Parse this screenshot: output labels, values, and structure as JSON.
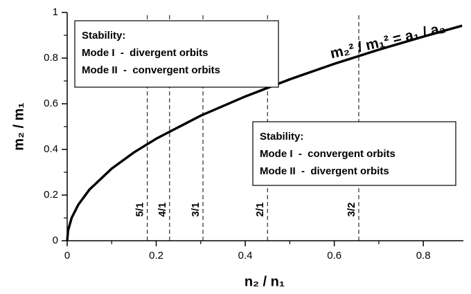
{
  "chart_data": {
    "type": "line",
    "x_label": "n₂ / n₁",
    "y_label": "m₂ / m₁",
    "xlim": [
      0,
      0.89
    ],
    "ylim": [
      0,
      1
    ],
    "xticks": [
      0,
      0.2,
      0.4,
      0.6,
      0.8
    ],
    "yticks": [
      0,
      0.2,
      0.4,
      0.6,
      0.8,
      1
    ],
    "xminorticks": [
      0.1,
      0.3,
      0.5,
      0.7
    ],
    "yminorticks": [
      0.1,
      0.3,
      0.5,
      0.7,
      0.9
    ],
    "series": [
      {
        "color": "#000000",
        "x": [
          0,
          0.002,
          0.01,
          0.025,
          0.05,
          0.1,
          0.15,
          0.2,
          0.3,
          0.4,
          0.5,
          0.6,
          0.7,
          0.8,
          0.887
        ],
        "values": [
          0,
          0.045,
          0.1,
          0.158,
          0.224,
          0.316,
          0.387,
          0.447,
          0.548,
          0.632,
          0.707,
          0.775,
          0.837,
          0.894,
          0.942
        ]
      }
    ],
    "curve_label": "m₂² / m₁² = a₁ / a₂",
    "resonances": [
      {
        "x": 0.18,
        "label": "5/1"
      },
      {
        "x": 0.23,
        "label": "4/1"
      },
      {
        "x": 0.305,
        "label": "3/1"
      },
      {
        "x": 0.45,
        "label": "2/1"
      },
      {
        "x": 0.655,
        "label": "3/2"
      }
    ],
    "boxes": [
      {
        "lines": [
          "Stability:",
          "Mode I  -  divergent orbits",
          "Mode II  -  convergent orbits"
        ]
      },
      {
        "lines": [
          "Stability:",
          "Mode I  -  convergent orbits",
          "Mode II  -  divergent orbits"
        ]
      }
    ]
  }
}
